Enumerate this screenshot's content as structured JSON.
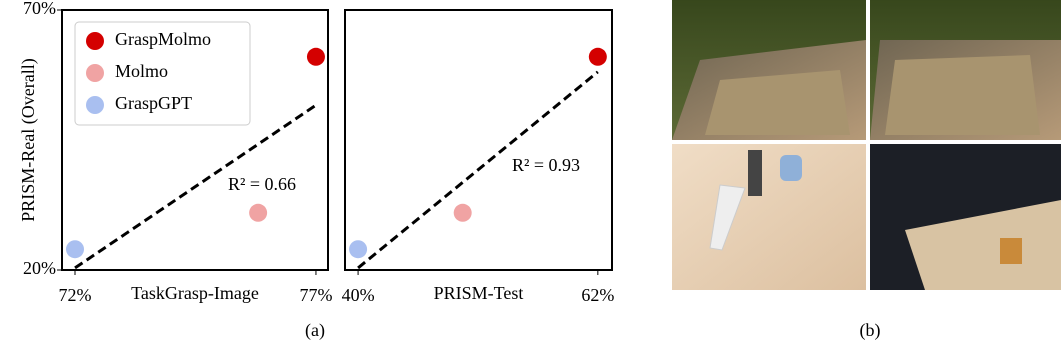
{
  "chart_data": [
    {
      "type": "scatter",
      "x_label": "TaskGrasp-Image",
      "y_label": "PRISM-Real (Overall)",
      "xlim": [
        71.73,
        77.25
      ],
      "ylim": [
        20,
        70
      ],
      "xticks": [
        {
          "value": 72,
          "label": "72%"
        },
        {
          "value": 77,
          "label": "77%"
        }
      ],
      "yticks": [
        {
          "value": 20,
          "label": "20%"
        },
        {
          "value": 70,
          "label": "70%"
        }
      ],
      "series": [
        {
          "name": "GraspMolmo",
          "color": "#d40000",
          "x": [
            77
          ],
          "values": [
            61
          ]
        },
        {
          "name": "Molmo",
          "color": "#f0a3a3",
          "x": [
            75.8
          ],
          "values": [
            31
          ]
        },
        {
          "name": "GraspGPT",
          "color": "#a9bff0",
          "x": [
            72
          ],
          "values": [
            24
          ]
        }
      ],
      "fit": {
        "x": [
          72,
          77
        ],
        "y": [
          20.4,
          51.7
        ]
      },
      "annotation": "R² = 0.66",
      "legend": "upper left"
    },
    {
      "type": "scatter",
      "x_label": "PRISM-Test",
      "xlim": [
        38.8,
        63.3
      ],
      "ylim": [
        20,
        70
      ],
      "xticks": [
        {
          "value": 40,
          "label": "40%"
        },
        {
          "value": 62,
          "label": "62%"
        }
      ],
      "series": [
        {
          "name": "GraspMolmo",
          "color": "#d40000",
          "x": [
            62
          ],
          "values": [
            61
          ]
        },
        {
          "name": "Molmo",
          "color": "#f0a3a3",
          "x": [
            49.6
          ],
          "values": [
            31
          ]
        },
        {
          "name": "GraspGPT",
          "color": "#a9bff0",
          "x": [
            40
          ],
          "values": [
            24
          ]
        }
      ],
      "fit": {
        "x": [
          40,
          62
        ],
        "y": [
          20.4,
          58.1
        ]
      },
      "annotation": "R² = 0.93"
    }
  ],
  "figure": {
    "captions": [
      "(a)",
      "(b)"
    ]
  }
}
